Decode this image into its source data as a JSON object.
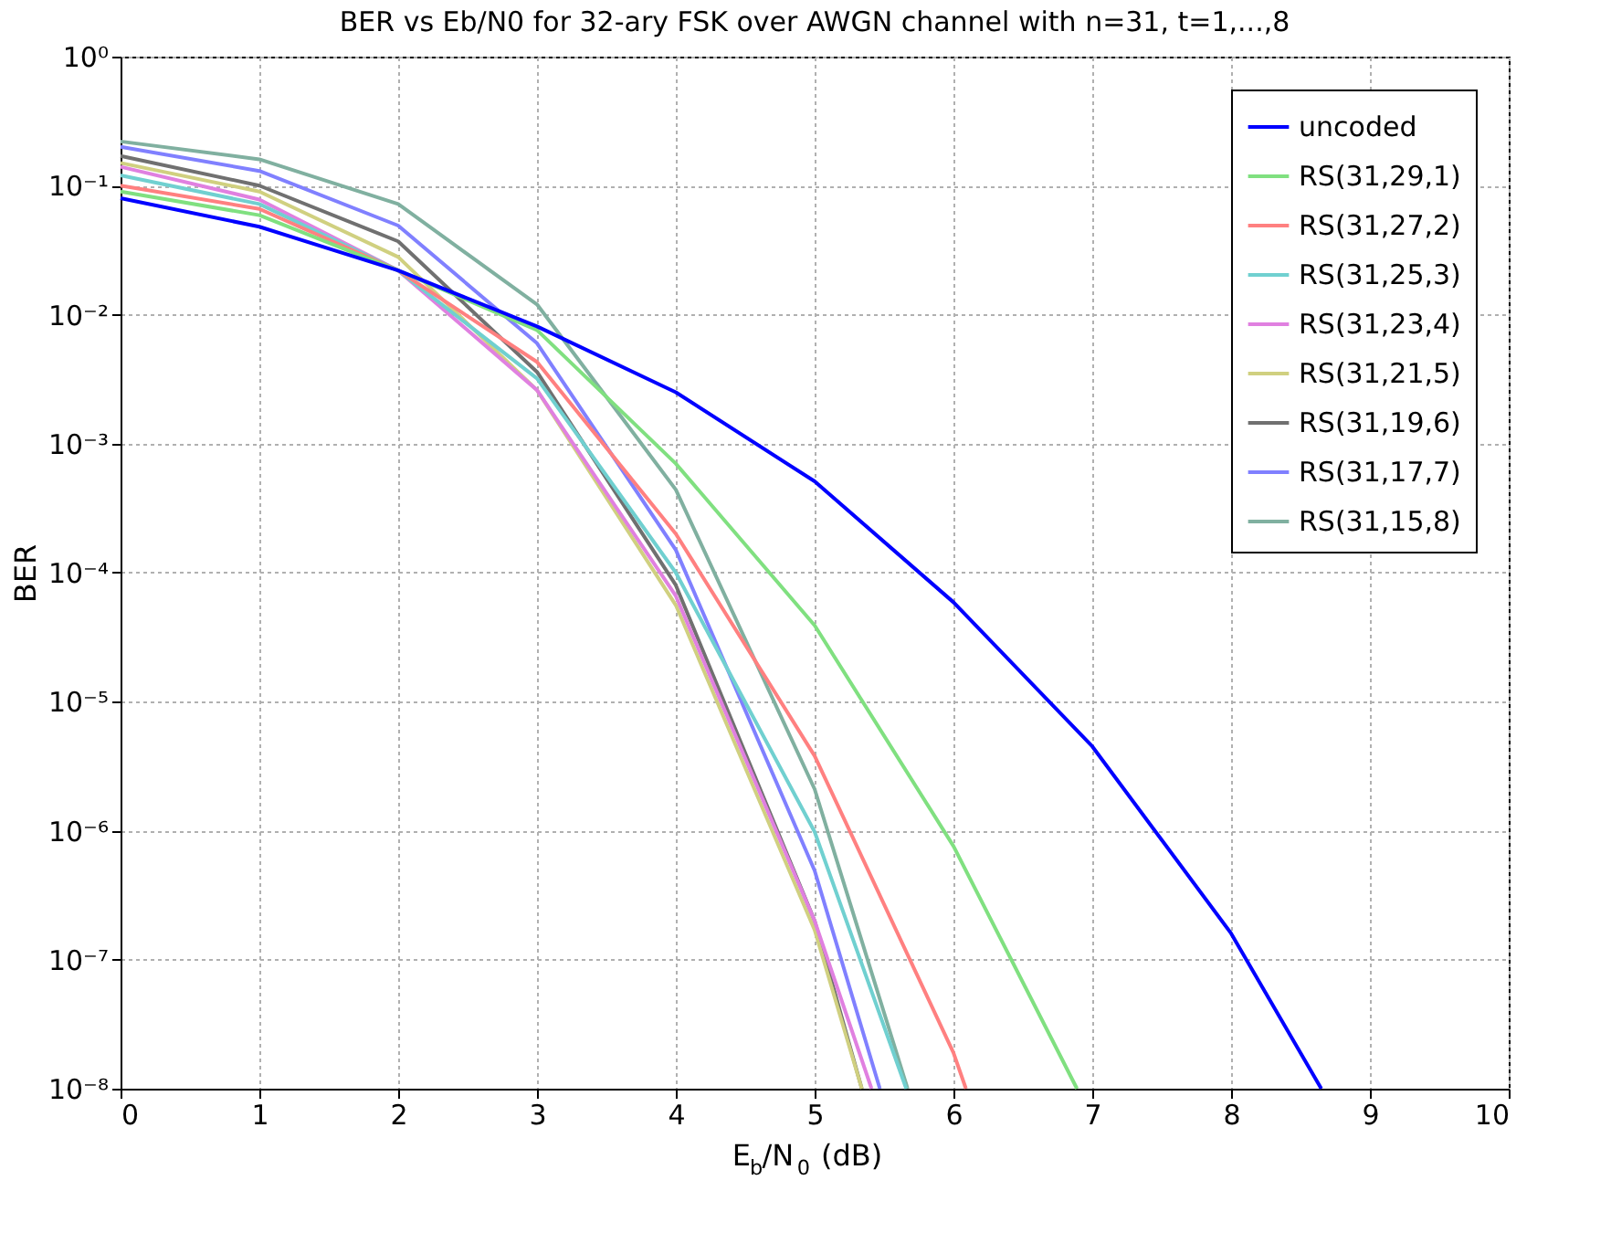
{
  "chart_data": {
    "type": "line",
    "title": "BER vs Eb/N0 for 32-ary FSK over AWGN channel with n=31, t=1,...,8",
    "xlabel": "E$_{b}$/N$_{0}$ (dB)",
    "ylabel": "BER",
    "log": "y",
    "grid": true,
    "legend": "top right",
    "line_style": "solid",
    "marker": "none",
    "xlim": [
      0,
      10
    ],
    "xticks": [
      0,
      1,
      2,
      3,
      4,
      5,
      6,
      7,
      8,
      9,
      10
    ],
    "ylim": [
      1e-08,
      1
    ],
    "yticks": [
      {
        "value": 1,
        "label": "10⁰"
      },
      {
        "value": 0.1,
        "label": "10⁻¹"
      },
      {
        "value": 0.01,
        "label": "10⁻²"
      },
      {
        "value": 0.001,
        "label": "10⁻³"
      },
      {
        "value": 0.0001,
        "label": "10⁻⁴"
      },
      {
        "value": 1e-05,
        "label": "10⁻⁵"
      },
      {
        "value": 1e-06,
        "label": "10⁻⁶"
      },
      {
        "value": 1e-07,
        "label": "10⁻⁷"
      },
      {
        "value": 1e-08,
        "label": "10⁻⁸"
      }
    ],
    "series": [
      {
        "name": "uncoded",
        "color": "#0000ff",
        "x": [
          0,
          1,
          2,
          3,
          4,
          5,
          6,
          7,
          8,
          8.65
        ],
        "values": [
          0.08,
          0.048,
          0.022,
          0.0081,
          0.0025,
          0.00051,
          5.9e-05,
          4.5e-06,
          1.6e-07,
          1e-08
        ]
      },
      {
        "name": "RS(31,29,1)",
        "color": "#80e080",
        "x": [
          0,
          1,
          2,
          3,
          4,
          5,
          6,
          6.89
        ],
        "values": [
          0.09,
          0.059,
          0.022,
          0.0076,
          0.0007,
          3.9e-05,
          7.6e-07,
          1e-08
        ]
      },
      {
        "name": "RS(31,27,2)",
        "color": "#ff8080",
        "x": [
          0,
          1,
          2,
          3,
          4,
          5,
          6,
          6.09
        ],
        "values": [
          0.1,
          0.066,
          0.022,
          0.0043,
          0.0002,
          3.8e-06,
          1.9e-08,
          1e-08
        ]
      },
      {
        "name": "RS(31,25,3)",
        "color": "#70d0d0",
        "x": [
          0,
          1,
          2,
          3,
          4,
          5,
          5.66
        ],
        "values": [
          0.12,
          0.072,
          0.022,
          0.0032,
          0.0001,
          9.8e-07,
          1e-08
        ]
      },
      {
        "name": "RS(31,23,4)",
        "color": "#e080e0",
        "x": [
          0,
          1,
          2,
          3,
          4,
          5,
          5.41
        ],
        "values": [
          0.14,
          0.078,
          0.022,
          0.0026,
          6.6e-05,
          2e-07,
          1e-08
        ]
      },
      {
        "name": "RS(31,21,5)",
        "color": "#d0d080",
        "x": [
          0,
          1,
          2,
          3,
          4,
          5,
          5.34
        ],
        "values": [
          0.15,
          0.09,
          0.028,
          0.0026,
          5.6e-05,
          1.7e-07,
          1e-08
        ]
      },
      {
        "name": "RS(31,19,6)",
        "color": "#707070",
        "x": [
          0,
          1,
          2,
          3,
          4,
          5,
          5.34
        ],
        "values": [
          0.17,
          0.1,
          0.037,
          0.0036,
          8e-05,
          2e-07,
          1e-08
        ]
      },
      {
        "name": "RS(31,17,7)",
        "color": "#8080ff",
        "x": [
          0,
          1,
          2,
          3,
          4,
          5,
          5.47
        ],
        "values": [
          0.2,
          0.13,
          0.049,
          0.006,
          0.00015,
          4.9e-07,
          1e-08
        ]
      },
      {
        "name": "RS(31,15,8)",
        "color": "#80b0a0",
        "x": [
          0,
          1,
          2,
          3,
          4,
          5,
          5.67
        ],
        "values": [
          0.22,
          0.16,
          0.072,
          0.012,
          0.00044,
          2.1e-06,
          1e-08
        ]
      }
    ]
  }
}
